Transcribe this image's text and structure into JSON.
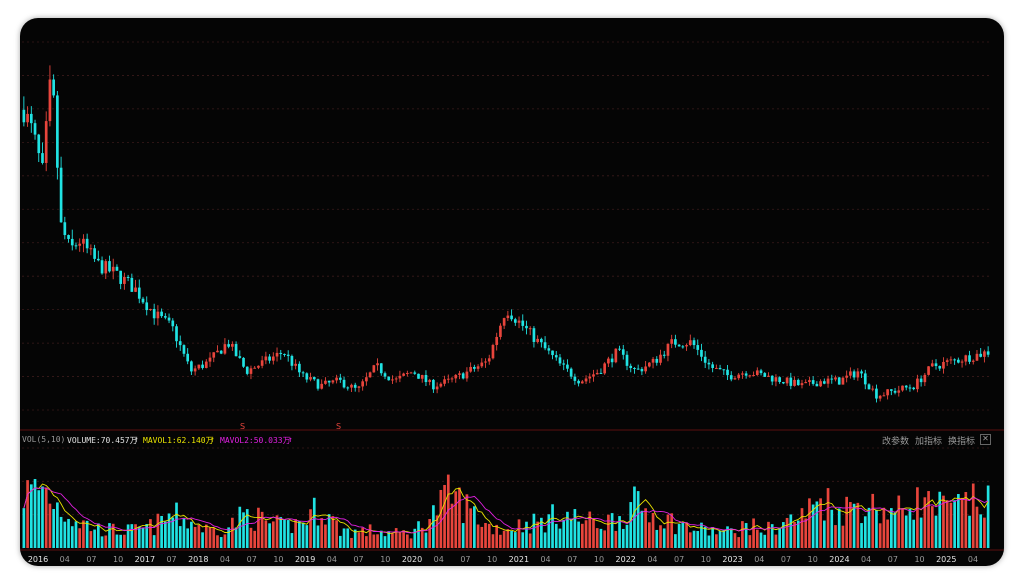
{
  "colors": {
    "background": "#050505",
    "up": "#e8453c",
    "down": "#20e3e3",
    "mavol1": "#e8e200",
    "mavol2": "#e020e0",
    "label": "#c8c8c8",
    "grid": "#3a1a1a"
  },
  "indicator": {
    "name": "VOL(5,10)",
    "volume_label": "VOLUME:70.457万",
    "mavol1_label": "MAVOL1:62.140万",
    "mavol2_label": "MAVOL2:50.033万",
    "arrow": "↑"
  },
  "toolbar": {
    "change_params": "改参数",
    "add_indicator": "加指标",
    "switch_indicator": "换指标",
    "close_glyph": "✕"
  },
  "markers": [
    "S",
    "S"
  ],
  "chart_data": {
    "type": "candlestick",
    "grid": true,
    "x_ticks": [
      "2016",
      "04",
      "07",
      "10",
      "2017",
      "07",
      "2018",
      "04",
      "07",
      "10",
      "2019",
      "04",
      "07",
      "10",
      "2020",
      "04",
      "07",
      "10",
      "2021",
      "04",
      "07",
      "10",
      "2022",
      "04",
      "07",
      "10",
      "2023",
      "04",
      "07",
      "10",
      "2024",
      "04",
      "07",
      "10",
      "2025",
      "04"
    ],
    "price_trend_keypoints": [
      [
        0,
        8.6
      ],
      [
        1,
        8.1
      ],
      [
        2,
        7.3
      ],
      [
        3,
        9.4
      ],
      [
        4,
        6.2
      ],
      [
        5,
        5.7
      ],
      [
        6,
        5.9
      ],
      [
        8,
        5.4
      ],
      [
        10,
        5.2
      ],
      [
        12,
        4.9
      ],
      [
        14,
        4.4
      ],
      [
        16,
        4.1
      ],
      [
        18,
        3.2
      ],
      [
        20,
        3.4
      ],
      [
        22,
        3.8
      ],
      [
        24,
        3.2
      ],
      [
        26,
        3.4
      ],
      [
        28,
        3.6
      ],
      [
        30,
        3.1
      ],
      [
        32,
        2.9
      ],
      [
        34,
        3.0
      ],
      [
        36,
        2.8
      ],
      [
        38,
        3.3
      ],
      [
        40,
        3.0
      ],
      [
        42,
        3.2
      ],
      [
        44,
        2.9
      ],
      [
        46,
        3.0
      ],
      [
        48,
        3.2
      ],
      [
        50,
        3.4
      ],
      [
        52,
        4.5
      ],
      [
        54,
        4.1
      ],
      [
        56,
        3.7
      ],
      [
        58,
        3.3
      ],
      [
        60,
        3.0
      ],
      [
        62,
        3.2
      ],
      [
        64,
        3.6
      ],
      [
        66,
        3.2
      ],
      [
        68,
        3.4
      ],
      [
        70,
        3.8
      ],
      [
        72,
        3.8
      ],
      [
        74,
        3.3
      ],
      [
        76,
        3.1
      ],
      [
        78,
        3.2
      ],
      [
        80,
        3.1
      ],
      [
        82,
        3.0
      ],
      [
        84,
        2.9
      ],
      [
        86,
        3.0
      ],
      [
        88,
        3.0
      ],
      [
        90,
        3.2
      ],
      [
        92,
        2.7
      ],
      [
        94,
        2.8
      ],
      [
        96,
        2.9
      ],
      [
        98,
        3.3
      ],
      [
        100,
        3.4
      ],
      [
        102,
        3.5
      ],
      [
        104,
        3.6
      ]
    ],
    "volume_trend_keypoints": [
      [
        0,
        62
      ],
      [
        2,
        70
      ],
      [
        4,
        45
      ],
      [
        6,
        30
      ],
      [
        8,
        22
      ],
      [
        10,
        20
      ],
      [
        12,
        20
      ],
      [
        14,
        25
      ],
      [
        16,
        38
      ],
      [
        18,
        30
      ],
      [
        20,
        20
      ],
      [
        22,
        24
      ],
      [
        24,
        40
      ],
      [
        26,
        30
      ],
      [
        28,
        24
      ],
      [
        30,
        30
      ],
      [
        32,
        48
      ],
      [
        34,
        22
      ],
      [
        36,
        18
      ],
      [
        38,
        20
      ],
      [
        40,
        16
      ],
      [
        42,
        18
      ],
      [
        44,
        38
      ],
      [
        46,
        62
      ],
      [
        48,
        45
      ],
      [
        50,
        25
      ],
      [
        52,
        22
      ],
      [
        54,
        28
      ],
      [
        56,
        30
      ],
      [
        58,
        40
      ],
      [
        60,
        32
      ],
      [
        62,
        28
      ],
      [
        64,
        34
      ],
      [
        66,
        50
      ],
      [
        68,
        38
      ],
      [
        70,
        30
      ],
      [
        72,
        22
      ],
      [
        74,
        20
      ],
      [
        76,
        18
      ],
      [
        78,
        26
      ],
      [
        80,
        20
      ],
      [
        82,
        30
      ],
      [
        84,
        36
      ],
      [
        86,
        58
      ],
      [
        88,
        42
      ],
      [
        90,
        52
      ],
      [
        92,
        46
      ],
      [
        94,
        40
      ],
      [
        96,
        55
      ],
      [
        98,
        48
      ],
      [
        100,
        44
      ],
      [
        102,
        52
      ],
      [
        104,
        50
      ]
    ],
    "bars": 260,
    "series": [
      {
        "name": "VOLUME"
      },
      {
        "name": "MAVOL1"
      },
      {
        "name": "MAVOL2"
      }
    ]
  }
}
